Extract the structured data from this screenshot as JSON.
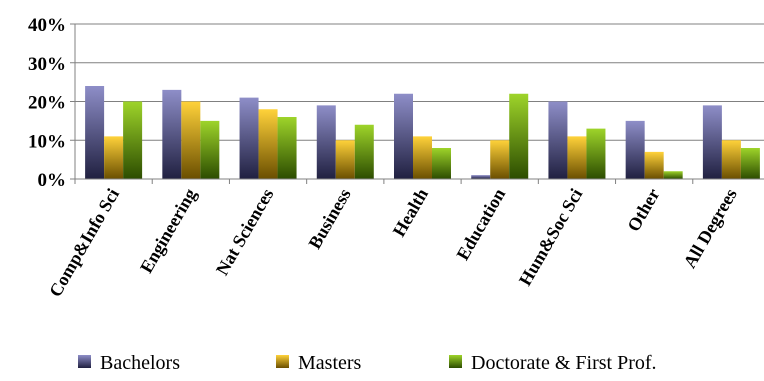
{
  "chart_data": {
    "type": "bar",
    "title": "",
    "xlabel": "",
    "ylabel": "",
    "ylim": [
      0,
      40
    ],
    "yticks": [
      "0%",
      "10%",
      "20%",
      "30%",
      "40%"
    ],
    "categories": [
      "Comp&Info Sci",
      "Engineering",
      "Nat Sciences",
      "Business",
      "Health",
      "Education",
      "Hum&Soc Sci",
      "Other",
      "All Degrees"
    ],
    "series": [
      {
        "name": "Bachelors",
        "values": [
          24,
          23,
          21,
          19,
          22,
          1,
          20,
          15,
          19
        ]
      },
      {
        "name": "Masters",
        "values": [
          11,
          20,
          18,
          10,
          11,
          10,
          11,
          7,
          10
        ]
      },
      {
        "name": "Doctorate & First Prof.",
        "values": [
          20,
          15,
          16,
          14,
          8,
          22,
          13,
          2,
          8
        ]
      }
    ],
    "grid": true,
    "legend_position": "bottom",
    "colors": {
      "Bachelors": [
        "#8e8ec8",
        "#202040"
      ],
      "Masters": [
        "#ffd23a",
        "#6a4e00"
      ],
      "Doctorate & First Prof.": [
        "#9ed42a",
        "#2c4c00"
      ]
    }
  }
}
